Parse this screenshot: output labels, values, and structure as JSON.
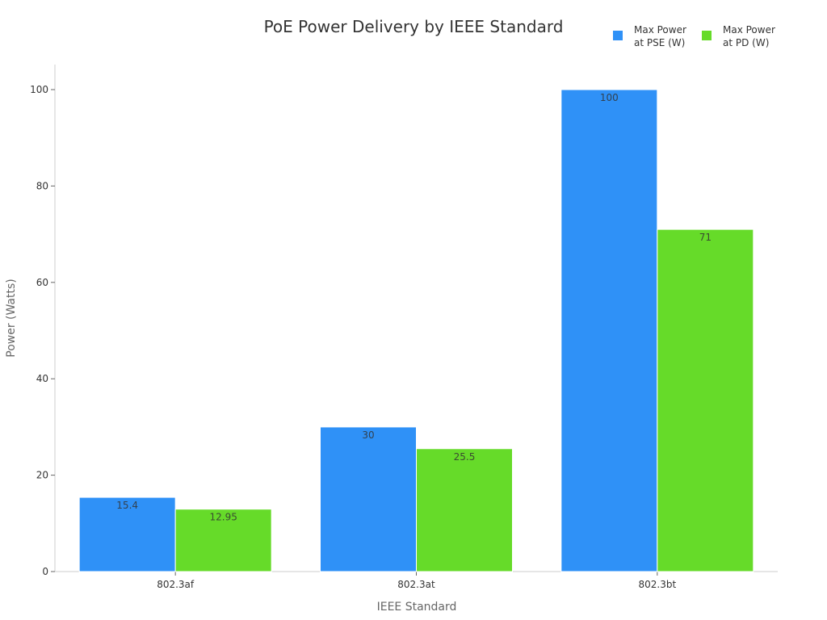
{
  "chart_data": {
    "type": "bar",
    "title": "PoE Power Delivery by IEEE Standard",
    "xlabel": "IEEE Standard",
    "ylabel": "Power (Watts)",
    "categories": [
      "802.3af",
      "802.3at",
      "802.3bt"
    ],
    "series": [
      {
        "name": "Max Power at PSE (W)",
        "legend_lines": [
          "Max Power",
          "at PSE (W)"
        ],
        "color": "#2f91f7",
        "values": [
          15.4,
          30,
          100
        ],
        "labels": [
          "15.4",
          "30",
          "100"
        ]
      },
      {
        "name": "Max Power at PD (W)",
        "legend_lines": [
          "Max Power",
          "at PD (W)"
        ],
        "color": "#66db29",
        "values": [
          12.95,
          25.5,
          71
        ],
        "labels": [
          "12.95",
          "25.5",
          "71"
        ]
      }
    ],
    "ylim": [
      0,
      105
    ],
    "yticks": [
      0,
      20,
      40,
      60,
      80,
      100
    ],
    "ytick_labels": [
      "0",
      "20",
      "40",
      "60",
      "80",
      "100"
    ],
    "grid": false,
    "legend_position": "top-right"
  }
}
